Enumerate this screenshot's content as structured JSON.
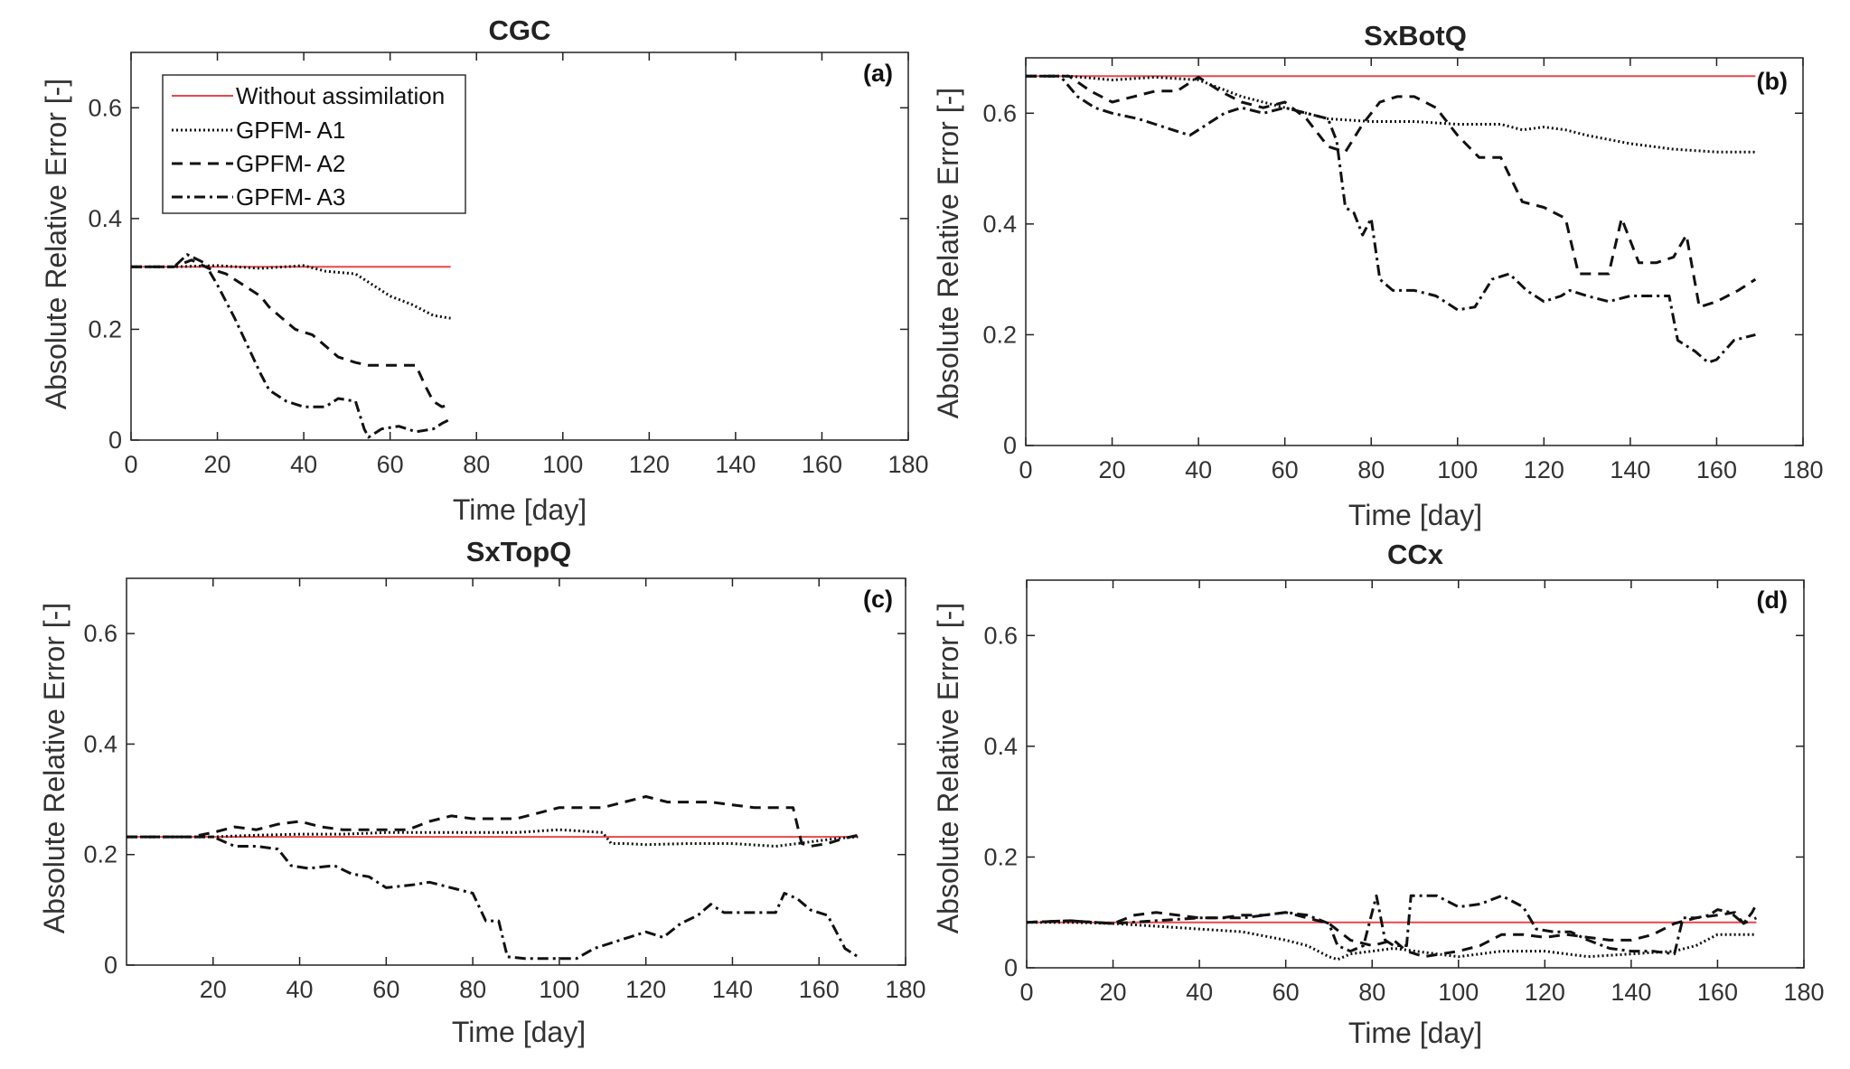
{
  "chart_data": [
    {
      "type": "line",
      "title": "CGC",
      "panel_label": "(a)",
      "xlabel": "Time [day]",
      "ylabel": "Absolute Relative Error [-]",
      "xlim": [
        0,
        180
      ],
      "ylim": [
        0,
        0.7
      ],
      "xticks": [
        "0",
        "20",
        "40",
        "60",
        "80",
        "100",
        "120",
        "140",
        "160",
        "180"
      ],
      "yticks": [
        "0",
        "0.2",
        "0.4",
        "0.6"
      ],
      "legend_position": "top-left",
      "series": [
        {
          "name": "Without assimilation",
          "style": "solid",
          "color": "#e8474c",
          "x": [
            0,
            74
          ],
          "y": [
            0.313,
            0.313
          ]
        },
        {
          "name": "GPFM- A1",
          "style": "dotted",
          "color": "#111111",
          "x": [
            0,
            10,
            20,
            30,
            40,
            45,
            52,
            56,
            60,
            65,
            70,
            74
          ],
          "y": [
            0.313,
            0.313,
            0.315,
            0.31,
            0.315,
            0.305,
            0.3,
            0.28,
            0.26,
            0.245,
            0.225,
            0.22
          ]
        },
        {
          "name": "GPFM- A2",
          "style": "dashed",
          "color": "#111111",
          "x": [
            0,
            10,
            14,
            18,
            22,
            26,
            30,
            32,
            35,
            38,
            42,
            45,
            48,
            52,
            55,
            58,
            62,
            66,
            68,
            70,
            72,
            74
          ],
          "y": [
            0.313,
            0.313,
            0.325,
            0.31,
            0.3,
            0.28,
            0.26,
            0.24,
            0.22,
            0.2,
            0.19,
            0.17,
            0.15,
            0.14,
            0.135,
            0.135,
            0.135,
            0.135,
            0.1,
            0.07,
            0.06,
            0.065
          ]
        },
        {
          "name": "GPFM- A3",
          "style": "dashdot",
          "color": "#111111",
          "x": [
            0,
            10,
            13,
            17,
            20,
            24,
            27,
            30,
            32,
            36,
            40,
            45,
            48,
            52,
            54,
            55,
            58,
            62,
            66,
            70,
            72,
            74
          ],
          "y": [
            0.313,
            0.313,
            0.335,
            0.32,
            0.28,
            0.22,
            0.17,
            0.12,
            0.09,
            0.07,
            0.06,
            0.06,
            0.075,
            0.07,
            0.02,
            0.005,
            0.02,
            0.025,
            0.015,
            0.02,
            0.03,
            0.038
          ]
        }
      ]
    },
    {
      "type": "line",
      "title": "SxBotQ",
      "panel_label": "(b)",
      "xlabel": "Time [day]",
      "ylabel": "Absolute Relative Error [-]",
      "xlim": [
        0,
        180
      ],
      "ylim": [
        0,
        0.7
      ],
      "xticks": [
        "0",
        "20",
        "40",
        "60",
        "80",
        "100",
        "120",
        "140",
        "160",
        "180"
      ],
      "yticks": [
        "0",
        "0.2",
        "0.4",
        "0.6"
      ],
      "series": [
        {
          "name": "Without assimilation",
          "style": "solid",
          "color": "#e8474c",
          "x": [
            0,
            169
          ],
          "y": [
            0.667,
            0.667
          ]
        },
        {
          "name": "GPFM- A1",
          "style": "dotted",
          "color": "#111111",
          "x": [
            0,
            10,
            20,
            30,
            40,
            50,
            60,
            70,
            80,
            90,
            100,
            110,
            115,
            120,
            125,
            130,
            140,
            150,
            160,
            169
          ],
          "y": [
            0.667,
            0.667,
            0.66,
            0.665,
            0.66,
            0.63,
            0.61,
            0.59,
            0.585,
            0.585,
            0.58,
            0.58,
            0.57,
            0.575,
            0.57,
            0.56,
            0.545,
            0.535,
            0.53,
            0.53
          ]
        },
        {
          "name": "GPFM- A2",
          "style": "dashed",
          "color": "#111111",
          "x": [
            0,
            10,
            15,
            20,
            25,
            30,
            35,
            40,
            45,
            50,
            55,
            60,
            65,
            70,
            74,
            78,
            82,
            86,
            90,
            95,
            100,
            105,
            110,
            115,
            120,
            125,
            128,
            132,
            135,
            138,
            142,
            146,
            150,
            153,
            156,
            160,
            165,
            169
          ],
          "y": [
            0.667,
            0.667,
            0.64,
            0.62,
            0.63,
            0.64,
            0.64,
            0.665,
            0.64,
            0.62,
            0.61,
            0.62,
            0.59,
            0.54,
            0.53,
            0.58,
            0.62,
            0.63,
            0.63,
            0.61,
            0.56,
            0.52,
            0.52,
            0.44,
            0.43,
            0.41,
            0.31,
            0.31,
            0.31,
            0.41,
            0.33,
            0.33,
            0.34,
            0.38,
            0.25,
            0.26,
            0.28,
            0.3
          ]
        },
        {
          "name": "GPFM- A3",
          "style": "dashdot",
          "color": "#111111",
          "x": [
            0,
            8,
            12,
            16,
            20,
            26,
            30,
            34,
            38,
            42,
            46,
            50,
            55,
            60,
            65,
            70,
            72,
            74,
            76,
            78,
            80,
            82,
            85,
            90,
            95,
            100,
            104,
            108,
            112,
            116,
            120,
            124,
            126,
            130,
            135,
            140,
            145,
            149,
            151,
            155,
            158,
            160,
            164,
            169
          ],
          "y": [
            0.667,
            0.667,
            0.63,
            0.61,
            0.6,
            0.59,
            0.58,
            0.57,
            0.56,
            0.58,
            0.6,
            0.61,
            0.6,
            0.61,
            0.6,
            0.59,
            0.55,
            0.43,
            0.42,
            0.38,
            0.41,
            0.3,
            0.28,
            0.28,
            0.27,
            0.245,
            0.25,
            0.3,
            0.31,
            0.28,
            0.26,
            0.27,
            0.28,
            0.27,
            0.26,
            0.27,
            0.27,
            0.27,
            0.19,
            0.17,
            0.15,
            0.155,
            0.19,
            0.2
          ]
        }
      ]
    },
    {
      "type": "line",
      "title": "SxTopQ",
      "panel_label": "(c)",
      "xlabel": "Time [day]",
      "ylabel": "Absolute Relative Error [-]",
      "xlim": [
        0,
        180
      ],
      "ylim": [
        0,
        0.7
      ],
      "xticks": [
        "20",
        "40",
        "60",
        "80",
        "100",
        "120",
        "140",
        "160",
        "180"
      ],
      "yticks": [
        "0",
        "0.2",
        "0.4",
        "0.6"
      ],
      "series": [
        {
          "name": "Without assimilation",
          "style": "solid",
          "color": "#e8474c",
          "x": [
            0,
            169
          ],
          "y": [
            0.232,
            0.232
          ]
        },
        {
          "name": "GPFM- A1",
          "style": "dotted",
          "color": "#111111",
          "x": [
            0,
            10,
            20,
            30,
            40,
            50,
            60,
            70,
            80,
            90,
            100,
            110,
            112,
            115,
            120,
            130,
            140,
            150,
            155,
            160,
            165,
            169
          ],
          "y": [
            0.232,
            0.232,
            0.232,
            0.235,
            0.237,
            0.237,
            0.24,
            0.24,
            0.24,
            0.24,
            0.245,
            0.24,
            0.22,
            0.22,
            0.218,
            0.22,
            0.22,
            0.215,
            0.22,
            0.225,
            0.23,
            0.232
          ]
        },
        {
          "name": "GPFM- A2",
          "style": "dashed",
          "color": "#111111",
          "x": [
            0,
            15,
            20,
            25,
            30,
            35,
            40,
            45,
            50,
            55,
            60,
            65,
            70,
            75,
            80,
            85,
            90,
            95,
            100,
            105,
            110,
            115,
            120,
            125,
            130,
            135,
            140,
            145,
            150,
            154,
            156,
            158,
            162,
            166,
            169
          ],
          "y": [
            0.232,
            0.232,
            0.24,
            0.25,
            0.245,
            0.255,
            0.26,
            0.25,
            0.245,
            0.245,
            0.245,
            0.245,
            0.26,
            0.27,
            0.265,
            0.265,
            0.265,
            0.275,
            0.285,
            0.285,
            0.285,
            0.295,
            0.305,
            0.295,
            0.295,
            0.295,
            0.29,
            0.285,
            0.285,
            0.285,
            0.22,
            0.215,
            0.22,
            0.23,
            0.235
          ]
        },
        {
          "name": "GPFM- A3",
          "style": "dashdot",
          "color": "#111111",
          "x": [
            0,
            10,
            20,
            25,
            30,
            35,
            38,
            42,
            48,
            52,
            56,
            60,
            66,
            70,
            75,
            80,
            83,
            86,
            88,
            92,
            98,
            104,
            108,
            112,
            116,
            120,
            124,
            128,
            132,
            135,
            138,
            142,
            146,
            150,
            152,
            155,
            158,
            162,
            166,
            169
          ],
          "y": [
            0.232,
            0.232,
            0.232,
            0.215,
            0.215,
            0.21,
            0.18,
            0.175,
            0.18,
            0.165,
            0.16,
            0.14,
            0.145,
            0.15,
            0.14,
            0.13,
            0.08,
            0.08,
            0.015,
            0.012,
            0.012,
            0.012,
            0.03,
            0.04,
            0.05,
            0.06,
            0.05,
            0.075,
            0.09,
            0.11,
            0.095,
            0.095,
            0.095,
            0.095,
            0.13,
            0.12,
            0.1,
            0.09,
            0.03,
            0.015
          ]
        }
      ]
    },
    {
      "type": "line",
      "title": "CCx",
      "panel_label": "(d)",
      "xlabel": "Time [day]",
      "ylabel": "Absolute Relative Error [-]",
      "xlim": [
        0,
        180
      ],
      "ylim": [
        0,
        0.7
      ],
      "xticks": [
        "0",
        "20",
        "40",
        "60",
        "80",
        "100",
        "120",
        "140",
        "160",
        "180"
      ],
      "yticks": [
        "0",
        "0.2",
        "0.4",
        "0.6"
      ],
      "series": [
        {
          "name": "Without assimilation",
          "style": "solid",
          "color": "#e8474c",
          "x": [
            0,
            169
          ],
          "y": [
            0.082,
            0.082
          ]
        },
        {
          "name": "GPFM- A1",
          "style": "dotted",
          "color": "#111111",
          "x": [
            0,
            10,
            20,
            30,
            40,
            50,
            60,
            65,
            70,
            72,
            75,
            80,
            85,
            90,
            95,
            100,
            110,
            120,
            130,
            140,
            150,
            155,
            160,
            165,
            169
          ],
          "y": [
            0.082,
            0.082,
            0.08,
            0.075,
            0.07,
            0.065,
            0.05,
            0.04,
            0.02,
            0.015,
            0.025,
            0.03,
            0.035,
            0.03,
            0.025,
            0.02,
            0.03,
            0.03,
            0.02,
            0.025,
            0.03,
            0.04,
            0.06,
            0.06,
            0.06
          ]
        },
        {
          "name": "GPFM- A2",
          "style": "dashed",
          "color": "#111111",
          "x": [
            0,
            10,
            20,
            25,
            30,
            35,
            40,
            45,
            50,
            55,
            60,
            65,
            70,
            75,
            80,
            85,
            88,
            92,
            96,
            100,
            105,
            110,
            115,
            120,
            125,
            130,
            135,
            140,
            145,
            150,
            155,
            160,
            164,
            166,
            169
          ],
          "y": [
            0.082,
            0.085,
            0.08,
            0.095,
            0.1,
            0.095,
            0.09,
            0.09,
            0.095,
            0.095,
            0.1,
            0.09,
            0.08,
            0.05,
            0.04,
            0.05,
            0.03,
            0.02,
            0.025,
            0.03,
            0.04,
            0.06,
            0.06,
            0.055,
            0.06,
            0.055,
            0.05,
            0.05,
            0.06,
            0.08,
            0.09,
            0.095,
            0.1,
            0.08,
            0.09
          ]
        },
        {
          "name": "GPFM- A3",
          "style": "dashdot",
          "color": "#111111",
          "x": [
            0,
            10,
            20,
            30,
            40,
            50,
            55,
            60,
            65,
            70,
            72,
            75,
            78,
            80,
            81,
            83,
            85,
            88,
            89,
            95,
            100,
            105,
            110,
            115,
            118,
            122,
            126,
            130,
            135,
            140,
            145,
            150,
            152,
            155,
            158,
            160,
            163,
            166,
            168,
            169
          ],
          "y": [
            0.082,
            0.085,
            0.08,
            0.085,
            0.09,
            0.09,
            0.095,
            0.1,
            0.095,
            0.08,
            0.04,
            0.03,
            0.04,
            0.1,
            0.13,
            0.05,
            0.04,
            0.04,
            0.13,
            0.13,
            0.11,
            0.115,
            0.13,
            0.11,
            0.07,
            0.065,
            0.065,
            0.05,
            0.035,
            0.03,
            0.03,
            0.025,
            0.09,
            0.09,
            0.095,
            0.105,
            0.1,
            0.08,
            0.1,
            0.115
          ]
        }
      ]
    }
  ]
}
